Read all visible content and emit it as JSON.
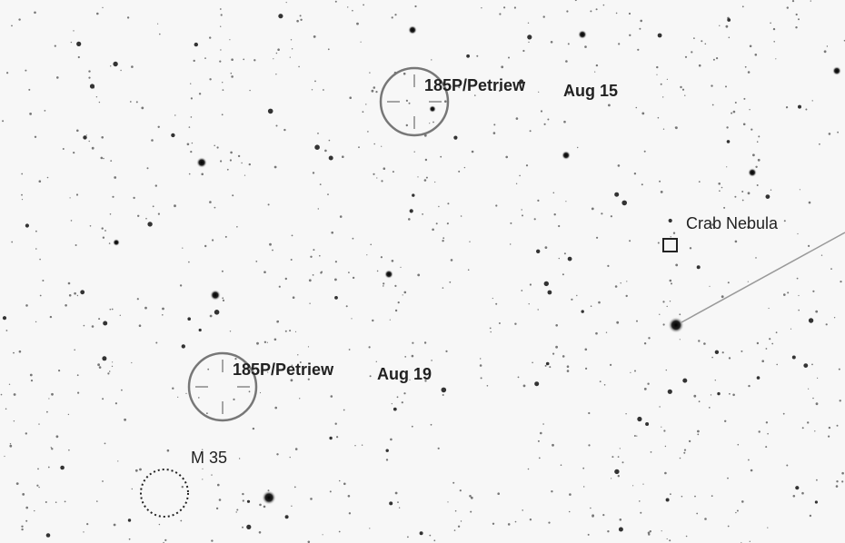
{
  "markers": [
    {
      "name": "185P/Petriew",
      "date": "Aug 15"
    },
    {
      "name": "185P/Petriew",
      "date": "Aug 19"
    }
  ],
  "objects": [
    {
      "label": "Crab Nebula"
    },
    {
      "label": "M 35"
    }
  ]
}
